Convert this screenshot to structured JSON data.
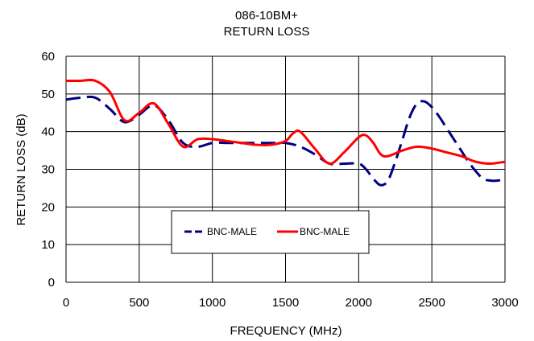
{
  "chart_data": {
    "type": "line",
    "title": "086-10BM+",
    "subtitle": "RETURN LOSS",
    "xlabel": "FREQUENCY (MHz)",
    "ylabel": "RETURN LOSS (dB)",
    "xlim": [
      0,
      3000
    ],
    "ylim": [
      0,
      60
    ],
    "x_ticks": [
      "0",
      "500",
      "1000",
      "1500",
      "2000",
      "2500",
      "3000"
    ],
    "y_ticks": [
      "0",
      "10",
      "20",
      "30",
      "40",
      "50",
      "60"
    ],
    "grid": true,
    "legend_position": "lower-center",
    "series": [
      {
        "name": "BNC-MALE",
        "color": "#000080",
        "line_style": "dashed",
        "x": [
          0,
          100,
          200,
          300,
          400,
          500,
          600,
          700,
          800,
          900,
          1000,
          1100,
          1200,
          1300,
          1400,
          1500,
          1600,
          1700,
          1800,
          1900,
          2000,
          2050,
          2100,
          2150,
          2200,
          2250,
          2300,
          2350,
          2400,
          2450,
          2500,
          2550,
          2600,
          2650,
          2700,
          2750,
          2800,
          2850,
          2900,
          2950,
          3000
        ],
        "y": [
          48.5,
          49,
          49,
          46,
          42.5,
          44.5,
          47,
          43,
          37,
          36,
          37,
          37,
          37,
          37,
          37,
          37,
          36,
          34,
          31.5,
          31.5,
          31.5,
          30,
          27.5,
          25.8,
          27,
          32,
          38,
          44,
          47.5,
          48,
          46.5,
          44,
          41,
          38,
          35,
          32,
          29.5,
          27.5,
          27,
          27,
          27.5
        ]
      },
      {
        "name": "BNC-MALE",
        "color": "#ff0000",
        "line_style": "solid",
        "x": [
          0,
          100,
          200,
          300,
          400,
          500,
          600,
          700,
          800,
          900,
          1000,
          1100,
          1200,
          1300,
          1400,
          1500,
          1550,
          1600,
          1700,
          1800,
          1900,
          2000,
          2050,
          2100,
          2150,
          2200,
          2300,
          2400,
          2500,
          2600,
          2700,
          2800,
          2900,
          3000
        ],
        "y": [
          53.5,
          53.5,
          53.5,
          50.5,
          43,
          45,
          47.5,
          42,
          36,
          38,
          38,
          37.5,
          37,
          36.5,
          36.5,
          37.5,
          39.5,
          40,
          35.5,
          31.5,
          34.5,
          38.5,
          39,
          37,
          34,
          33.5,
          35,
          36,
          35.5,
          34.5,
          33.5,
          32,
          31.5,
          32
        ]
      }
    ]
  }
}
